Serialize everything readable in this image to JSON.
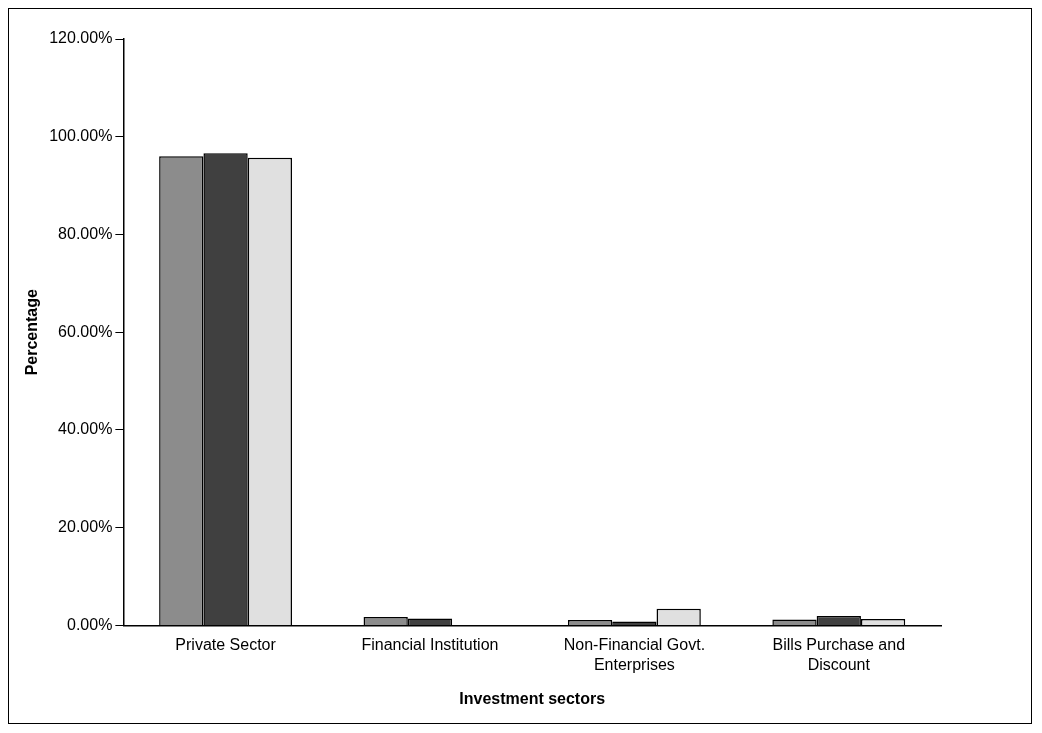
{
  "chart_data": {
    "type": "bar",
    "xlabel": "Investment sectors",
    "ylabel": "Percentage",
    "categories": [
      "Private Sector",
      "Financial Institution",
      "Non-Financial Govt. Enterprises",
      "Bills Purchase and Discount"
    ],
    "series": [
      {
        "color": "#8c8c8c",
        "values": [
          96.0,
          1.7,
          1.1,
          1.2
        ]
      },
      {
        "color": "#404040",
        "values": [
          96.6,
          1.4,
          0.8,
          1.9
        ]
      },
      {
        "color": "#e0e0e0",
        "values": [
          95.7,
          0,
          3.4,
          1.3
        ]
      }
    ],
    "ylim": [
      0,
      120
    ],
    "yticks": [
      {
        "value": 0,
        "label": "0.00%"
      },
      {
        "value": 20,
        "label": "20.00%"
      },
      {
        "value": 40,
        "label": "40.00%"
      },
      {
        "value": 60,
        "label": "60.00%"
      },
      {
        "value": 80,
        "label": "80.00%"
      },
      {
        "value": 100,
        "label": "100.00%"
      },
      {
        "value": 120,
        "label": "120.00%"
      }
    ],
    "grid": false,
    "legend": false
  }
}
